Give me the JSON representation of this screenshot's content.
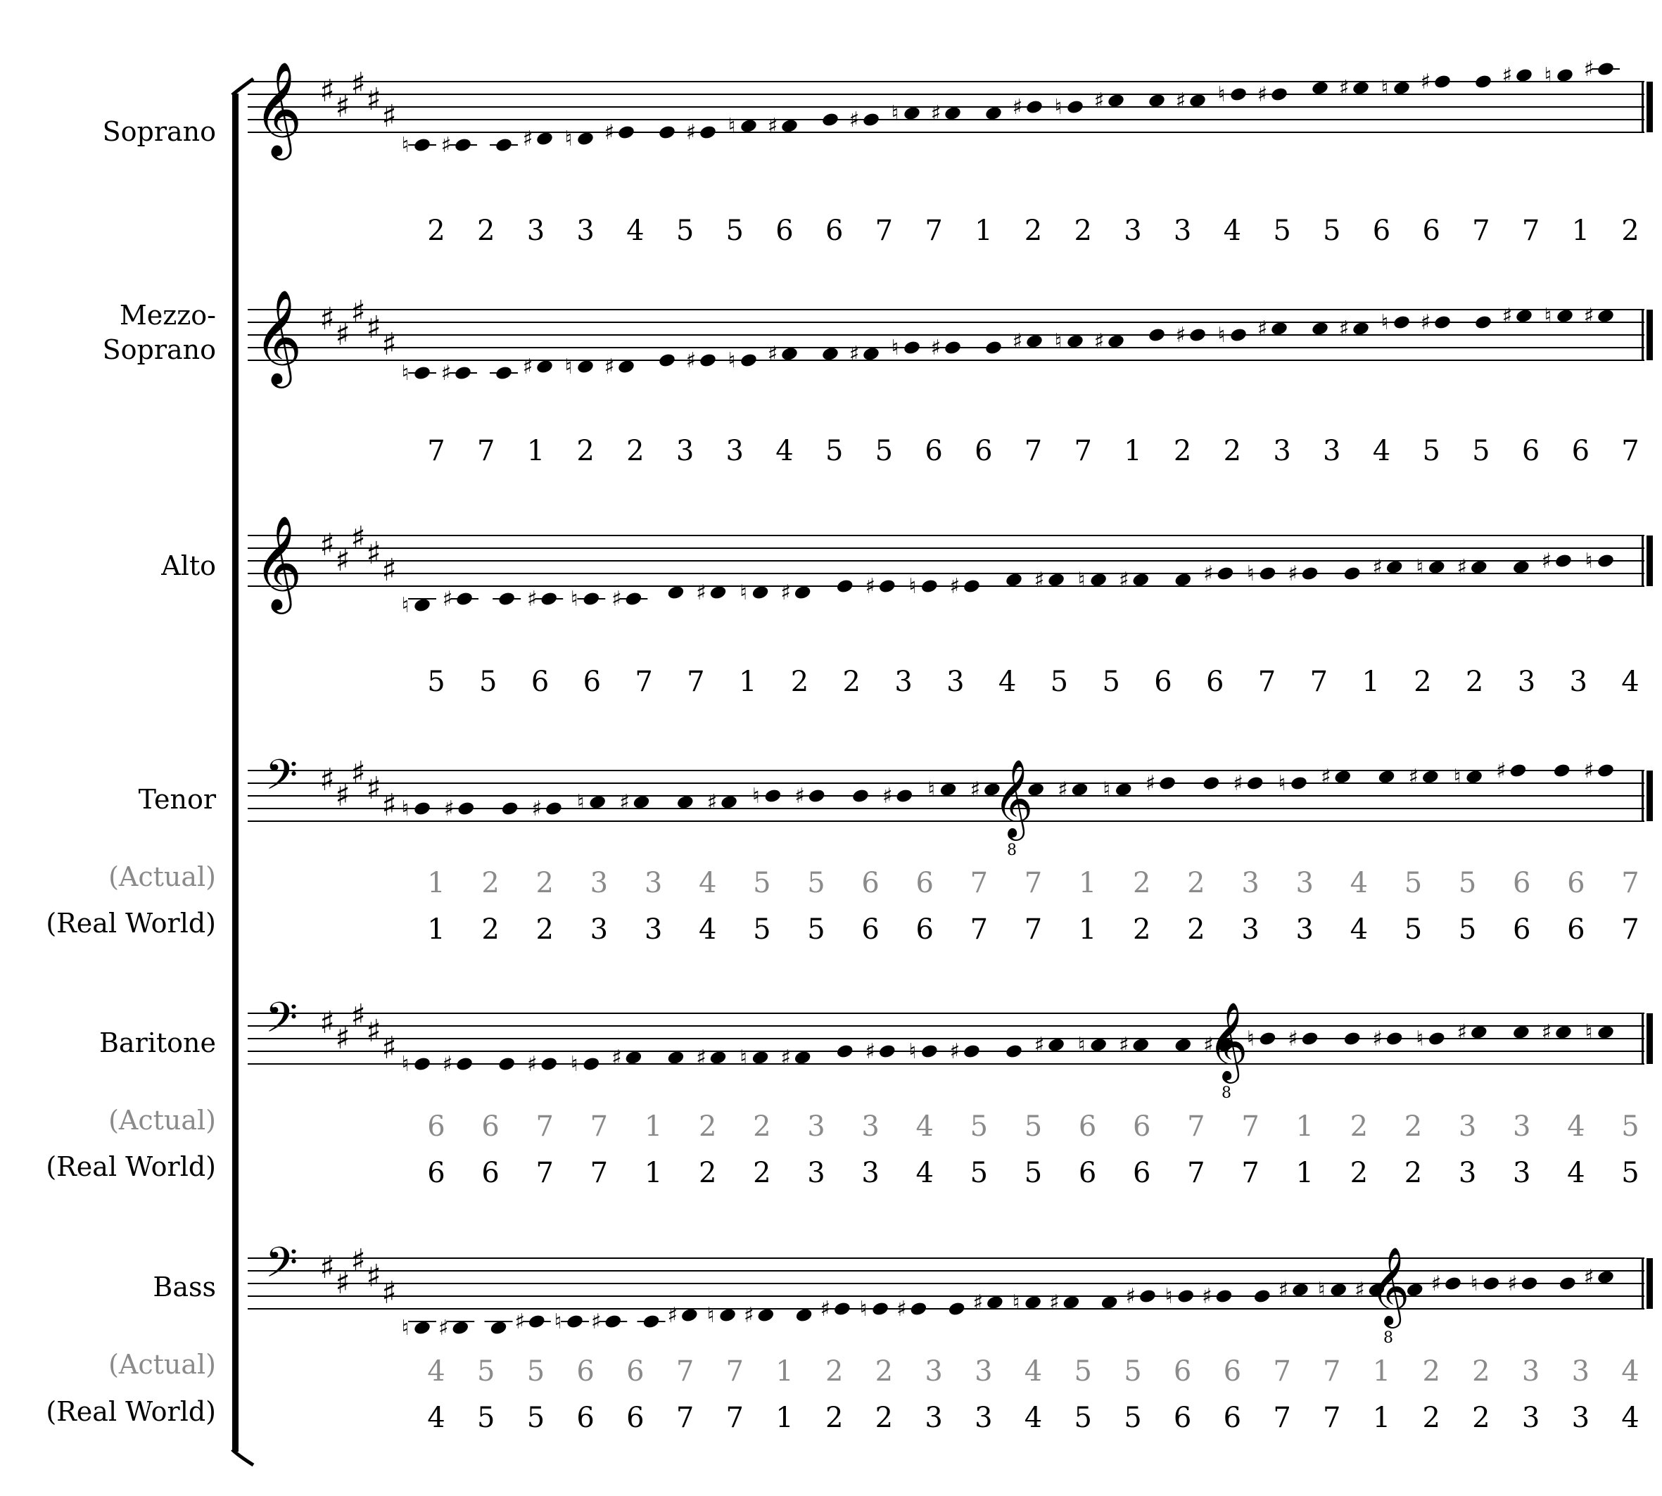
{
  "parts": [
    {
      "id": "soprano",
      "label_lines": [
        "Soprano"
      ],
      "clef": "treble",
      "sub_labels": [],
      "rows": [
        [
          "2",
          "2",
          "3",
          "3",
          "4",
          "5",
          "5",
          "6",
          "6",
          "7",
          "7",
          "1",
          "2",
          "2",
          "3",
          "3",
          "4",
          "5",
          "5",
          "6",
          "6",
          "7",
          "7",
          "1",
          "2"
        ]
      ]
    },
    {
      "id": "mezzo",
      "label_lines": [
        "Mezzo-",
        "Soprano"
      ],
      "clef": "treble",
      "sub_labels": [],
      "rows": [
        [
          "7",
          "7",
          "1",
          "2",
          "2",
          "3",
          "3",
          "4",
          "5",
          "5",
          "6",
          "6",
          "7",
          "7",
          "1",
          "2",
          "2",
          "3",
          "3",
          "4",
          "5",
          "5",
          "6",
          "6",
          "7"
        ]
      ]
    },
    {
      "id": "alto",
      "label_lines": [
        "Alto"
      ],
      "clef": "treble",
      "sub_labels": [],
      "rows": [
        [
          "5",
          "5",
          "6",
          "6",
          "7",
          "7",
          "1",
          "2",
          "2",
          "3",
          "3",
          "4",
          "5",
          "5",
          "6",
          "6",
          "7",
          "7",
          "1",
          "2",
          "2",
          "3",
          "3",
          "4"
        ]
      ]
    },
    {
      "id": "tenor",
      "label_lines": [
        "Tenor"
      ],
      "clef": "bass",
      "sub_labels": [
        "(Actual)",
        "(Real World)"
      ],
      "rows": [
        [
          "1",
          "2",
          "2",
          "3",
          "3",
          "4",
          "5",
          "5",
          "6",
          "6",
          "7",
          "7",
          "1",
          "2",
          "2",
          "3",
          "3",
          "4",
          "5",
          "5",
          "6",
          "6",
          "7"
        ],
        [
          "1",
          "2",
          "2",
          "3",
          "3",
          "4",
          "5",
          "5",
          "6",
          "6",
          "7",
          "7",
          "1",
          "2",
          "2",
          "3",
          "3",
          "4",
          "5",
          "5",
          "6",
          "6",
          "7"
        ]
      ]
    },
    {
      "id": "baritone",
      "label_lines": [
        "Baritone"
      ],
      "clef": "bass",
      "sub_labels": [
        "(Actual)",
        "(Real World)"
      ],
      "rows": [
        [
          "6",
          "6",
          "7",
          "7",
          "1",
          "2",
          "2",
          "3",
          "3",
          "4",
          "5",
          "5",
          "6",
          "6",
          "7",
          "7",
          "1",
          "2",
          "2",
          "3",
          "3",
          "4",
          "5"
        ],
        [
          "6",
          "6",
          "7",
          "7",
          "1",
          "2",
          "2",
          "3",
          "3",
          "4",
          "5",
          "5",
          "6",
          "6",
          "7",
          "7",
          "1",
          "2",
          "2",
          "3",
          "3",
          "4",
          "5"
        ]
      ]
    },
    {
      "id": "bass",
      "label_lines": [
        "Bass"
      ],
      "clef": "bass",
      "sub_labels": [
        "(Actual)",
        "(Real World)"
      ],
      "rows": [
        [
          "4",
          "5",
          "5",
          "6",
          "6",
          "7",
          "7",
          "1",
          "2",
          "2",
          "3",
          "3",
          "4",
          "5",
          "5",
          "6",
          "6",
          "7",
          "7",
          "1",
          "2",
          "2",
          "3",
          "3",
          "4"
        ],
        [
          "4",
          "5",
          "5",
          "6",
          "6",
          "7",
          "7",
          "1",
          "2",
          "2",
          "3",
          "3",
          "4",
          "5",
          "5",
          "6",
          "6",
          "7",
          "7",
          "1",
          "2",
          "2",
          "3",
          "3",
          "4"
        ]
      ]
    }
  ],
  "glyphs": {
    "treble_clef": "𝄞",
    "bass_clef": "𝄢",
    "sharp": "♯",
    "natural": "♮",
    "octave_mark": "8"
  },
  "colors": {
    "ink": "#000000",
    "actual": "#8a8a8a"
  }
}
